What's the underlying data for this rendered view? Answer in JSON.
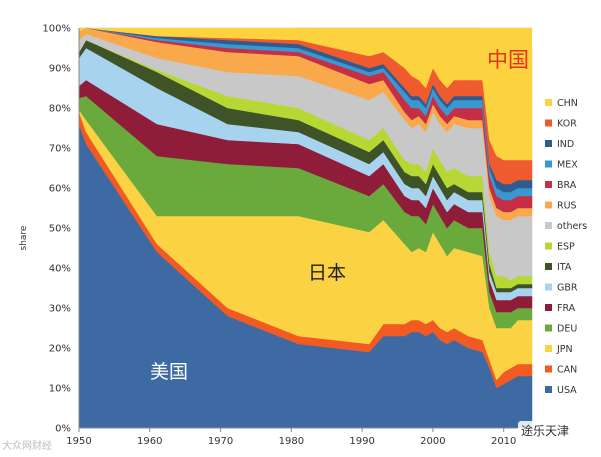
{
  "chart_data": {
    "type": "area",
    "stacked": true,
    "title": "",
    "xlabel": "",
    "ylabel": "share",
    "xlim": [
      1950,
      2014
    ],
    "ylim": [
      0,
      100
    ],
    "xticks": [
      1950,
      1960,
      1970,
      1980,
      1990,
      2000,
      2010
    ],
    "yticks": [
      0,
      10,
      20,
      30,
      40,
      50,
      60,
      70,
      80,
      90,
      100
    ],
    "ytick_labels": [
      "0%",
      "10%",
      "20%",
      "30%",
      "40%",
      "50%",
      "60%",
      "70%",
      "80%",
      "90%",
      "100%"
    ],
    "grid": true,
    "legend_position": "right",
    "x": [
      1950,
      1951,
      1961,
      1971,
      1981,
      1991,
      1993,
      1996,
      1997,
      1998,
      1999,
      2000,
      2001,
      2002,
      2003,
      2005,
      2007,
      2008,
      2009,
      2010,
      2011,
      2012,
      2013,
      2014
    ],
    "series": [
      {
        "name": "USA",
        "color": "#3d6aa2",
        "values": [
          76,
          71,
          44,
          28,
          21,
          19,
          23,
          23,
          24,
          24,
          23,
          24,
          22,
          21,
          22,
          20,
          19,
          15,
          10,
          11,
          12,
          13,
          13,
          13
        ]
      },
      {
        "name": "CAN",
        "color": "#f15a22",
        "values": [
          3,
          3,
          2,
          2,
          2,
          2,
          3,
          3,
          3,
          3,
          3,
          3,
          3,
          3,
          3,
          3,
          3,
          2,
          2,
          3,
          3,
          3,
          3,
          3
        ]
      },
      {
        "name": "JPN",
        "color": "#fbd244",
        "values": [
          0.5,
          3,
          7,
          23,
          30,
          28,
          26,
          20,
          17,
          18,
          18,
          22,
          21,
          19,
          20,
          21,
          21,
          13,
          13,
          11,
          10,
          11,
          11,
          11
        ]
      },
      {
        "name": "DEU",
        "color": "#6aaa3c",
        "values": [
          3,
          6,
          15,
          13,
          12,
          9,
          9,
          8,
          9,
          8,
          7,
          7,
          7,
          7,
          7,
          6,
          7,
          4,
          4,
          4,
          4,
          3,
          3,
          3
        ]
      },
      {
        "name": "FRA",
        "color": "#8f1d3a",
        "values": [
          3,
          4,
          8,
          6,
          6,
          5,
          5,
          4,
          4,
          4,
          4,
          4,
          4,
          4,
          4,
          4,
          4,
          3,
          3,
          3,
          3,
          3,
          3,
          3
        ]
      },
      {
        "name": "GBR",
        "color": "#a8d3ef",
        "values": [
          7,
          8,
          9,
          4,
          3,
          3,
          3,
          3,
          3,
          3,
          3,
          3,
          3,
          3,
          3,
          3,
          3,
          2,
          2,
          2,
          2,
          2,
          2,
          2
        ]
      },
      {
        "name": "ITA",
        "color": "#3e5328",
        "values": [
          1.5,
          2,
          4,
          4,
          3,
          3,
          3,
          3,
          3,
          3,
          3,
          3,
          3,
          3,
          2,
          2,
          2,
          2,
          1,
          1,
          1,
          1,
          1,
          1
        ]
      },
      {
        "name": "ESP",
        "color": "#b7d734",
        "values": [
          0,
          0,
          0.5,
          3,
          3,
          3,
          3,
          3,
          3,
          3,
          3,
          4,
          4,
          4,
          4,
          4,
          4,
          3,
          3,
          3,
          2,
          2,
          2,
          2
        ]
      },
      {
        "name": "others",
        "color": "#c8c8c8",
        "values": [
          3,
          1.5,
          3,
          6,
          8,
          10,
          9,
          10,
          9,
          10,
          10,
          9,
          9,
          10,
          11,
          12,
          12,
          14,
          15,
          14,
          15,
          15,
          15,
          15
        ]
      },
      {
        "name": "RUS",
        "color": "#f9a94b",
        "values": [
          2,
          1.5,
          4,
          5,
          5,
          4,
          3,
          2,
          2,
          2,
          2,
          2,
          2,
          2,
          2,
          2,
          2,
          2,
          2,
          2,
          2,
          2,
          2,
          2
        ]
      },
      {
        "name": "BRA",
        "color": "#c52e44",
        "values": [
          0,
          0,
          0.5,
          1,
          1,
          2,
          2,
          3,
          3,
          2,
          2,
          2,
          2,
          2,
          2,
          3,
          3,
          3,
          3,
          3,
          3,
          3,
          3,
          3
        ]
      },
      {
        "name": "MEX",
        "color": "#3b97cf",
        "values": [
          0,
          0,
          0.5,
          1,
          1,
          1,
          1,
          2,
          2,
          2,
          2,
          2,
          2,
          2,
          2,
          2,
          2,
          2,
          2,
          2,
          2,
          2,
          2,
          2
        ]
      },
      {
        "name": "IND",
        "color": "#2f5c8f",
        "values": [
          0,
          0,
          0.5,
          1,
          1,
          1,
          1,
          1,
          1,
          1,
          1,
          1,
          1,
          1,
          1,
          1,
          1,
          1,
          2,
          2,
          2,
          2,
          2,
          2
        ]
      },
      {
        "name": "KOR",
        "color": "#ef5a2f",
        "values": [
          0,
          0,
          0,
          0.5,
          1,
          3,
          3,
          5,
          5,
          4,
          4,
          4,
          4,
          4,
          4,
          4,
          4,
          6,
          6,
          6,
          6,
          5,
          5,
          5
        ]
      },
      {
        "name": "CHN",
        "color": "#fdd23f",
        "values": [
          1,
          0,
          1.5,
          1.5,
          3,
          7,
          6,
          11,
          12,
          13,
          15,
          10,
          13,
          15,
          13,
          13,
          13,
          26,
          28,
          30,
          29,
          28,
          28,
          28
        ]
      }
    ],
    "annotations": [
      "美国",
      "日本",
      "中国"
    ]
  },
  "watermarks": {
    "left": "大众网财经",
    "right": "途乐天津"
  },
  "colors": {
    "annotation_cn": "#e8301d",
    "annotation_us": "#ffffff",
    "annotation_jp": "#222222",
    "axis_text": "#333333",
    "grid": "#d8d8d8"
  }
}
